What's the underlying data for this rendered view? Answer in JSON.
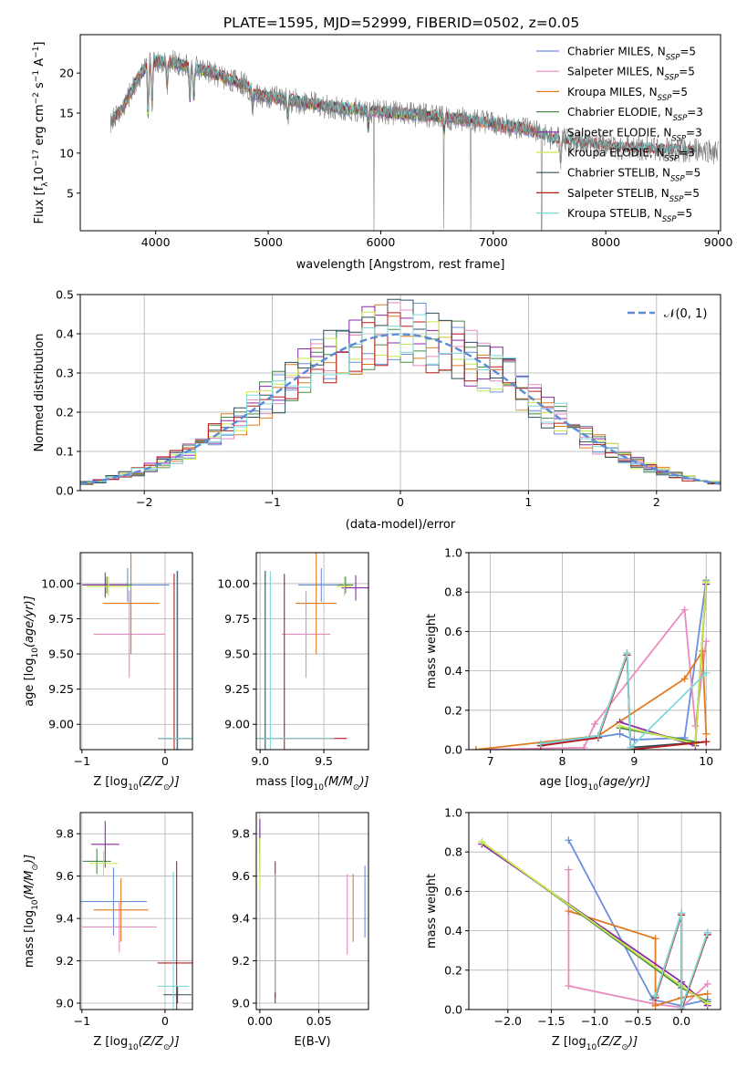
{
  "figure": {
    "title": "PLATE=1595, MJD=52999, FIBERID=0502, z=0.05"
  },
  "palette": {
    "Chabrier MILES": "#6a8fdc",
    "Salpeter MILES": "#e88bbf",
    "Kroupa MILES": "#e07b22",
    "Chabrier ELODIE": "#4a8a4a",
    "Salpeter ELODIE": "#8a2aa8",
    "Kroupa ELODIE": "#c7e84a",
    "Chabrier STELIB": "#2f4f5f",
    "Salpeter STELIB": "#b81c1c",
    "Kroupa STELIB": "#7fd8d8"
  },
  "legend_spectrum": [
    {
      "label": "Chabrier MILES, N",
      "sub": "SSP",
      "suffix": "=5",
      "color": "#6a8fdc"
    },
    {
      "label": "Salpeter MILES, N",
      "sub": "SSP",
      "suffix": "=5",
      "color": "#e88bbf"
    },
    {
      "label": "Kroupa MILES, N",
      "sub": "SSP",
      "suffix": "=5",
      "color": "#e07b22"
    },
    {
      "label": "Chabrier ELODIE, N",
      "sub": "SSP",
      "suffix": "=3",
      "color": "#4a8a4a"
    },
    {
      "label": "Salpeter ELODIE, N",
      "sub": "SSP",
      "suffix": "=3",
      "color": "#8a2aa8"
    },
    {
      "label": "Kroupa ELODIE, N",
      "sub": "SSP",
      "suffix": "=3",
      "color": "#c7e84a"
    },
    {
      "label": "Chabrier STELIB, N",
      "sub": "SSP",
      "suffix": "=5",
      "color": "#2f4f5f"
    },
    {
      "label": "Salpeter STELIB, N",
      "sub": "SSP",
      "suffix": "=5",
      "color": "#b81c1c"
    },
    {
      "label": "Kroupa STELIB, N",
      "sub": "SSP",
      "suffix": "=5",
      "color": "#7fd8d8"
    }
  ],
  "chart_data": [
    {
      "id": "spectrum",
      "type": "line",
      "xlabel": "wavelength [Angstrom, rest frame]",
      "ylabel": "Flux [f",
      "ylabel_parts": [
        "Flux [f",
        "λ",
        "10",
        "−17",
        " erg cm",
        "−2",
        " s",
        "−1",
        " A",
        "−1",
        "]"
      ],
      "xlim": [
        3330,
        9020
      ],
      "ylim": [
        0.3,
        24.8
      ],
      "xticks": [
        4000,
        5000,
        6000,
        7000,
        8000,
        9000
      ],
      "yticks": [
        5,
        10,
        15,
        20
      ],
      "grid": false,
      "legend": "top-right",
      "x_range_data": [
        3600,
        9000
      ],
      "continuum": [
        [
          3600,
          14.0
        ],
        [
          3700,
          15.5
        ],
        [
          3850,
          19.5
        ],
        [
          3950,
          21.5
        ],
        [
          4100,
          21.5
        ],
        [
          4300,
          20.8
        ],
        [
          4500,
          20.0
        ],
        [
          4800,
          18.5
        ],
        [
          4900,
          17.2
        ],
        [
          5200,
          16.6
        ],
        [
          5500,
          15.9
        ],
        [
          5800,
          15.4
        ],
        [
          6100,
          15.0
        ],
        [
          6500,
          14.6
        ],
        [
          6800,
          14.1
        ],
        [
          7000,
          13.6
        ],
        [
          7300,
          13.0
        ],
        [
          7500,
          11.9
        ],
        [
          7800,
          11.2
        ],
        [
          8100,
          10.7
        ],
        [
          8500,
          10.5
        ],
        [
          9000,
          10.1
        ]
      ],
      "absorption_lines": [
        [
          3933,
          6.5
        ],
        [
          3968,
          5.5
        ],
        [
          4102,
          3.0
        ],
        [
          4304,
          4.0
        ],
        [
          4340,
          3.5
        ],
        [
          4861,
          2.0
        ],
        [
          5175,
          2.5
        ],
        [
          5890,
          2.2
        ],
        [
          6563,
          1.5
        ],
        [
          7600,
          3.0
        ]
      ],
      "spikes": [
        [
          5940,
          0.3
        ],
        [
          6560,
          0.6
        ],
        [
          6800,
          0.2
        ],
        [
          7430,
          0.0
        ]
      ]
    },
    {
      "id": "residual-histogram",
      "type": "bar",
      "xlabel": "(data-model)/error",
      "ylabel": "Normed distribution",
      "xlim": [
        -2.5,
        2.5
      ],
      "ylim": [
        0,
        0.5
      ],
      "xticks": [
        -2,
        -1,
        0,
        1,
        2
      ],
      "yticks": [
        0.0,
        0.1,
        0.2,
        0.3,
        0.4,
        0.5
      ],
      "grid": true,
      "legend": "top-right",
      "legend_label": "𝒩(0, 1)",
      "bin_width": 0.1,
      "bin_start": -2.5
    },
    {
      "id": "age-vs-Z",
      "type": "scatter",
      "xlabel": "Z [log",
      "xlabel_parts": [
        "Z [log",
        "10",
        "(Z/Z",
        "⊙",
        ")]"
      ],
      "ylabel_parts": [
        "age  [log",
        "10",
        "(age/yr)]"
      ],
      "xlim": [
        -1.02,
        0.33
      ],
      "ylim": [
        8.82,
        10.22
      ],
      "xticks": [
        -1,
        0
      ],
      "yticks": [
        9.0,
        9.25,
        9.5,
        9.75,
        10.0
      ],
      "grid": true,
      "points": [
        {
          "c": "Chabrier MILES",
          "x": -0.45,
          "y": 9.99,
          "xerr": 0.5,
          "yerr": 0.12
        },
        {
          "c": "Salpeter MILES",
          "x": -0.43,
          "y": 9.64,
          "xerr": 0.43,
          "yerr": 0.31
        },
        {
          "c": "Kroupa MILES",
          "x": -0.41,
          "y": 9.86,
          "xerr": 0.34,
          "yerr": 0.36
        },
        {
          "c": "Chabrier ELODIE",
          "x": -0.7,
          "y": 9.99,
          "xerr": 0.3,
          "yerr": 0.06
        },
        {
          "c": "Salpeter ELODIE",
          "x": -0.72,
          "y": 9.99,
          "xerr": 0.27,
          "yerr": 0.09
        },
        {
          "c": "Kroupa ELODIE",
          "x": -0.68,
          "y": 9.98,
          "xerr": 0.27,
          "yerr": 0.07
        },
        {
          "c": "Chabrier STELIB",
          "x": 0.15,
          "y": 8.9,
          "xerr": 0.2,
          "yerr": 1.19
        },
        {
          "c": "Salpeter STELIB",
          "x": 0.11,
          "y": 8.9,
          "xerr": 0.19,
          "yerr": 1.17
        },
        {
          "c": "Kroupa STELIB",
          "x": 0.14,
          "y": 8.9,
          "xerr": 0.21,
          "yerr": 1.19
        }
      ]
    },
    {
      "id": "age-vs-mass",
      "type": "scatter",
      "xlabel_parts": [
        "mass [log",
        "10",
        "(M/M",
        "⊙",
        ")]"
      ],
      "xlim": [
        8.97,
        9.85
      ],
      "ylim": [
        8.82,
        10.22
      ],
      "xticks": [
        9.0,
        9.5
      ],
      "yticks": [
        9.0,
        9.25,
        9.5,
        9.75,
        10.0
      ],
      "grid": true,
      "points": [
        {
          "c": "Chabrier MILES",
          "x": 9.48,
          "y": 9.99,
          "xerr": 0.18,
          "yerr": 0.12
        },
        {
          "c": "Salpeter MILES",
          "x": 9.36,
          "y": 9.64,
          "xerr": 0.19,
          "yerr": 0.31
        },
        {
          "c": "Kroupa MILES",
          "x": 9.44,
          "y": 9.86,
          "xerr": 0.16,
          "yerr": 0.36
        },
        {
          "c": "Chabrier ELODIE",
          "x": 9.67,
          "y": 9.99,
          "xerr": 0.06,
          "yerr": 0.06
        },
        {
          "c": "Salpeter ELODIE",
          "x": 9.75,
          "y": 9.97,
          "xerr": 0.11,
          "yerr": 0.09
        },
        {
          "c": "Kroupa ELODIE",
          "x": 9.66,
          "y": 9.98,
          "xerr": 0.06,
          "yerr": 0.07
        },
        {
          "c": "Chabrier STELIB",
          "x": 9.04,
          "y": 8.9,
          "xerr": 0.04,
          "yerr": 1.19
        },
        {
          "c": "Salpeter STELIB",
          "x": 9.19,
          "y": 8.9,
          "xerr": 0.49,
          "yerr": 1.17
        },
        {
          "c": "Kroupa STELIB",
          "x": 9.08,
          "y": 8.9,
          "xerr": 0.5,
          "yerr": 1.19
        }
      ]
    },
    {
      "id": "mass-weight-vs-age",
      "type": "line",
      "xlabel_parts": [
        "age  [log",
        "10",
        "(age/yr)]"
      ],
      "ylabel": "mass weight",
      "xlim": [
        6.7,
        10.2
      ],
      "ylim": [
        0,
        1
      ],
      "xticks": [
        7,
        8,
        9,
        10
      ],
      "yticks": [
        0.0,
        0.2,
        0.4,
        0.6,
        0.8,
        1.0
      ],
      "grid": true,
      "series": [
        {
          "c": "Chabrier MILES",
          "x": [
            7.7,
            8.8,
            9.0,
            9.7,
            10.0
          ],
          "y": [
            0.02,
            0.08,
            0.05,
            0.06,
            0.86
          ]
        },
        {
          "c": "Salpeter MILES",
          "x": [
            6.8,
            8.3,
            8.45,
            9.7,
            9.85,
            10.0
          ],
          "y": [
            0.0,
            0.01,
            0.13,
            0.71,
            0.12,
            0.55
          ]
        },
        {
          "c": "Kroupa MILES",
          "x": [
            6.8,
            8.5,
            9.7,
            9.95,
            10.0
          ],
          "y": [
            0.0,
            0.07,
            0.36,
            0.5,
            0.08
          ]
        },
        {
          "c": "Chabrier ELODIE",
          "x": [
            8.8,
            9.85,
            10.0
          ],
          "y": [
            0.11,
            0.04,
            0.85
          ]
        },
        {
          "c": "Salpeter ELODIE",
          "x": [
            8.8,
            9.85,
            10.0
          ],
          "y": [
            0.14,
            0.02,
            0.84
          ]
        },
        {
          "c": "Kroupa ELODIE",
          "x": [
            8.8,
            9.85,
            10.0
          ],
          "y": [
            0.12,
            0.03,
            0.85
          ]
        },
        {
          "c": "Chabrier STELIB",
          "x": [
            7.7,
            8.5,
            8.9,
            8.95,
            10.0
          ],
          "y": [
            0.03,
            0.07,
            0.49,
            0.01,
            0.04
          ]
        },
        {
          "c": "Salpeter STELIB",
          "x": [
            7.7,
            8.5,
            8.9,
            8.95,
            10.0
          ],
          "y": [
            0.02,
            0.06,
            0.48,
            0.0,
            0.04
          ]
        },
        {
          "c": "Kroupa STELIB",
          "x": [
            7.7,
            8.5,
            8.9,
            8.95,
            10.0
          ],
          "y": [
            0.03,
            0.07,
            0.49,
            0.01,
            0.39
          ]
        }
      ]
    },
    {
      "id": "mass-vs-Z",
      "type": "scatter",
      "xlabel_parts": [
        "Z [log",
        "10",
        "(Z/Z",
        "⊙",
        ")]"
      ],
      "ylabel_parts": [
        "mass [log",
        "10",
        "(M/M",
        "⊙",
        ")]"
      ],
      "xlim": [
        -1.02,
        0.33
      ],
      "ylim": [
        8.97,
        9.9
      ],
      "xticks": [
        -1,
        0
      ],
      "yticks": [
        9.0,
        9.2,
        9.4,
        9.6,
        9.8
      ],
      "grid": true,
      "points": [
        {
          "c": "Chabrier MILES",
          "x": -0.62,
          "y": 9.48,
          "xerr": 0.4,
          "yerr": 0.16
        },
        {
          "c": "Salpeter MILES",
          "x": -0.55,
          "y": 9.36,
          "xerr": 0.45,
          "yerr": 0.12
        },
        {
          "c": "Kroupa MILES",
          "x": -0.53,
          "y": 9.44,
          "xerr": 0.33,
          "yerr": 0.15
        },
        {
          "c": "Chabrier ELODIE",
          "x": -0.82,
          "y": 9.67,
          "xerr": 0.17,
          "yerr": 0.06
        },
        {
          "c": "Salpeter ELODIE",
          "x": -0.72,
          "y": 9.75,
          "xerr": 0.17,
          "yerr": 0.11
        },
        {
          "c": "Kroupa ELODIE",
          "x": -0.74,
          "y": 9.66,
          "xerr": 0.17,
          "yerr": 0.06
        },
        {
          "c": "Chabrier STELIB",
          "x": 0.15,
          "y": 9.04,
          "xerr": 0.17,
          "yerr": 0.04
        },
        {
          "c": "Salpeter STELIB",
          "x": 0.14,
          "y": 9.19,
          "xerr": 0.23,
          "yerr": 0.48
        },
        {
          "c": "Kroupa STELIB",
          "x": 0.1,
          "y": 9.08,
          "xerr": 0.19,
          "yerr": 0.54
        }
      ]
    },
    {
      "id": "mass-vs-ebv",
      "type": "scatter",
      "xlabel": "E(B-V)",
      "xlim": [
        -0.003,
        0.092
      ],
      "ylim": [
        8.97,
        9.9
      ],
      "xticks": [
        0.0,
        0.05
      ],
      "yticks": [
        9.0,
        9.2,
        9.4,
        9.6,
        9.8
      ],
      "grid": true,
      "points": [
        {
          "c": "Chabrier MILES",
          "x": 0.089,
          "y": 9.48,
          "xerr": 0,
          "yerr": 0.17
        },
        {
          "c": "Salpeter MILES",
          "x": 0.074,
          "y": 9.42,
          "xerr": 0,
          "yerr": 0.19
        },
        {
          "c": "Kroupa MILES",
          "x": 0.079,
          "y": 9.45,
          "xerr": 0,
          "yerr": 0.16
        },
        {
          "c": "Chabrier ELODIE",
          "x": 0.0,
          "y": 9.72,
          "xerr": 0,
          "yerr": 0.1
        },
        {
          "c": "Salpeter ELODIE",
          "x": 0.0,
          "y": 9.79,
          "xerr": 0,
          "yerr": 0.08
        },
        {
          "c": "Kroupa ELODIE",
          "x": 0.0,
          "y": 9.66,
          "xerr": 0,
          "yerr": 0.12
        },
        {
          "c": "Chabrier STELIB",
          "x": 0.013,
          "y": 9.3,
          "xerr": 0,
          "yerr": 0.3
        },
        {
          "c": "Salpeter STELIB",
          "x": 0.013,
          "y": 9.35,
          "xerr": 0,
          "yerr": 0.32
        },
        {
          "c": "Kroupa STELIB",
          "x": 0.013,
          "y": 9.33,
          "xerr": 0,
          "yerr": 0.28
        }
      ]
    },
    {
      "id": "mass-weight-vs-Z",
      "type": "line",
      "xlabel_parts": [
        "Z [log",
        "10",
        "(Z/Z",
        "⊙",
        ")]"
      ],
      "ylabel": "mass weight",
      "xlim": [
        -2.45,
        0.45
      ],
      "ylim": [
        0,
        1
      ],
      "xticks": [
        -2.0,
        -1.5,
        -1.0,
        -0.5,
        0.0
      ],
      "yticks": [
        0.0,
        0.2,
        0.4,
        0.6,
        0.8,
        1.0
      ],
      "grid": true,
      "series": [
        {
          "c": "Chabrier MILES",
          "x": [
            -1.3,
            -0.33,
            0.0,
            0.3
          ],
          "y": [
            0.86,
            0.05,
            0.02,
            0.05
          ]
        },
        {
          "c": "Salpeter MILES",
          "x": [
            -1.3,
            -1.3,
            -0.33,
            0.0,
            0.3
          ],
          "y": [
            0.71,
            0.12,
            0.03,
            0.01,
            0.13
          ]
        },
        {
          "c": "Kroupa MILES",
          "x": [
            -1.3,
            -0.3,
            -0.3,
            0.0,
            0.3
          ],
          "y": [
            0.5,
            0.36,
            0.02,
            0.06,
            0.08
          ]
        },
        {
          "c": "Chabrier ELODIE",
          "x": [
            -2.3,
            0.0,
            0.3
          ],
          "y": [
            0.85,
            0.11,
            0.04
          ]
        },
        {
          "c": "Salpeter ELODIE",
          "x": [
            -2.3,
            0.0,
            0.3
          ],
          "y": [
            0.84,
            0.14,
            0.02
          ]
        },
        {
          "c": "Kroupa ELODIE",
          "x": [
            -2.3,
            0.0,
            0.3
          ],
          "y": [
            0.85,
            0.12,
            0.03
          ]
        },
        {
          "c": "Chabrier STELIB",
          "x": [
            -0.3,
            0.0,
            0.0,
            0.3
          ],
          "y": [
            0.07,
            0.49,
            0.0,
            0.39
          ]
        },
        {
          "c": "Salpeter STELIB",
          "x": [
            -0.3,
            0.0,
            0.0,
            0.3
          ],
          "y": [
            0.06,
            0.48,
            0.0,
            0.38
          ]
        },
        {
          "c": "Kroupa STELIB",
          "x": [
            -0.3,
            0.0,
            0.0,
            0.3
          ],
          "y": [
            0.07,
            0.49,
            0.01,
            0.39
          ]
        }
      ]
    }
  ]
}
